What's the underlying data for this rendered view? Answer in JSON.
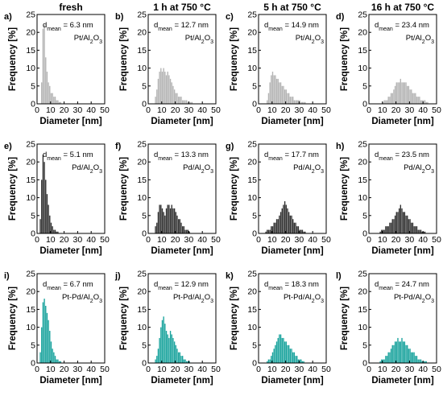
{
  "colors": {
    "Pt": "#b4b4b4",
    "Pd": "#303030",
    "Pt-Pd": "#19a39d",
    "axis": "#000000"
  },
  "chart_data": {
    "type": "bar",
    "layout": "grid",
    "column_titles": [
      "fresh",
      "1 h at 750 °C",
      "5 h at 750 °C",
      "16 h at 750 °C"
    ],
    "xlabel": "Diameter [nm]",
    "ylabel": "Frequency [%]",
    "xlim": [
      0,
      50
    ],
    "ylim": [
      0,
      25
    ],
    "xticks": [
      "0",
      "10",
      "20",
      "30",
      "40",
      "50"
    ],
    "yticks": [
      "0",
      "5",
      "10",
      "15",
      "20",
      "25"
    ],
    "bin_width": 1,
    "panels": [
      {
        "letter": "a)",
        "material": "Pt",
        "label": "Pt/Al2O3",
        "dmean": "6.3",
        "bins_start": 3,
        "values": [
          6,
          21,
          22,
          13,
          9,
          6,
          5,
          3,
          3,
          2,
          2,
          1,
          1,
          0.5,
          0.5
        ]
      },
      {
        "letter": "b)",
        "material": "Pt",
        "label": "Pt/Al2O3",
        "dmean": "12.7",
        "bins_start": 5,
        "values": [
          2,
          4,
          7,
          9,
          10,
          9,
          10,
          9,
          8,
          9,
          8,
          7,
          6,
          5,
          4,
          3,
          3,
          2,
          2,
          2,
          1,
          1,
          1,
          1,
          0.5,
          0.5,
          0.5,
          0.5
        ]
      },
      {
        "letter": "c)",
        "material": "Pt",
        "label": "Pt/Al2O3",
        "dmean": "14.9",
        "bins_start": 6,
        "values": [
          1,
          3,
          6,
          8,
          9,
          8,
          8,
          7,
          7,
          6,
          6,
          5,
          5,
          4,
          4,
          3,
          3,
          2,
          2,
          2,
          1,
          1,
          1,
          1,
          1,
          0.5,
          0.5,
          0.5,
          0.5
        ]
      },
      {
        "letter": "d)",
        "material": "Pt",
        "label": "Pt/Al2O3",
        "dmean": "23.4",
        "bins_start": 10,
        "values": [
          0.5,
          1,
          1,
          1,
          2,
          2,
          3,
          3,
          4,
          5,
          6,
          6,
          6,
          7,
          6,
          6,
          6,
          6,
          5,
          5,
          4,
          4,
          3,
          3,
          3,
          2,
          2,
          2,
          1,
          1,
          1,
          1,
          0.5,
          0.5
        ]
      },
      {
        "letter": "e)",
        "material": "Pd",
        "label": "Pd/Al2O3",
        "dmean": "5.1",
        "bins_start": 2,
        "values": [
          4,
          15,
          22,
          20,
          15,
          11,
          8,
          5,
          3,
          2,
          1,
          1,
          0.5,
          0.5
        ]
      },
      {
        "letter": "f)",
        "material": "Pd",
        "label": "Pd/Al2O3",
        "dmean": "13.3",
        "bins_start": 5,
        "values": [
          2,
          3,
          6,
          8,
          8,
          7,
          6,
          5,
          7,
          8,
          8,
          7,
          8,
          7,
          7,
          6,
          5,
          4,
          4,
          3,
          2,
          2,
          1,
          1,
          1,
          0.5
        ]
      },
      {
        "letter": "g)",
        "material": "Pd",
        "label": "Pd/Al2O3",
        "dmean": "17.7",
        "bins_start": 5,
        "values": [
          0.5,
          1,
          1,
          1,
          2,
          2,
          3,
          3,
          4,
          4,
          5,
          6,
          7,
          8,
          9,
          8,
          7,
          6,
          5,
          5,
          4,
          3,
          3,
          2,
          2,
          1,
          1,
          1,
          0.5,
          0.5
        ]
      },
      {
        "letter": "h)",
        "material": "Pd",
        "label": "Pd/Al2O3",
        "dmean": "23.5",
        "bins_start": 8,
        "values": [
          0.5,
          1,
          1,
          1,
          2,
          2,
          2,
          3,
          3,
          4,
          4,
          5,
          6,
          6,
          7,
          8,
          7,
          6,
          6,
          5,
          5,
          4,
          4,
          3,
          3,
          2,
          2,
          2,
          1,
          1,
          1,
          0.5,
          0.5,
          0.5
        ]
      },
      {
        "letter": "i)",
        "material": "Pt-Pd",
        "label": "Pt-Pd/Al2O3",
        "dmean": "6.7",
        "bins_start": 2,
        "values": [
          3,
          10,
          17,
          18,
          16,
          14,
          12,
          9,
          6,
          4,
          3,
          2,
          1,
          1,
          0.5,
          0.5
        ]
      },
      {
        "letter": "j)",
        "material": "Pt-Pd",
        "label": "Pt-Pd/Al2O3",
        "dmean": "12.9",
        "bins_start": 5,
        "values": [
          1,
          2,
          4,
          7,
          10,
          12,
          13,
          11,
          9,
          8,
          7,
          9,
          8,
          7,
          6,
          5,
          4,
          3,
          3,
          2,
          2,
          1,
          1,
          0.5,
          0.5,
          0.5
        ]
      },
      {
        "letter": "k)",
        "material": "Pt-Pd",
        "label": "Pt-Pd/Al2O3",
        "dmean": "18.3",
        "bins_start": 6,
        "values": [
          0.5,
          1,
          1,
          2,
          3,
          4,
          5,
          6,
          7,
          8,
          8,
          7,
          7,
          6,
          6,
          5,
          5,
          4,
          4,
          3,
          3,
          2,
          2,
          1,
          1,
          1,
          0.5,
          0.5
        ]
      },
      {
        "letter": "l)",
        "material": "Pt-Pd",
        "label": "Pt-Pd/Al2O3",
        "dmean": "24.7",
        "bins_start": 8,
        "values": [
          0.5,
          1,
          1,
          1,
          2,
          2,
          3,
          3,
          4,
          5,
          5,
          6,
          6,
          7,
          6,
          6,
          7,
          6,
          6,
          5,
          5,
          4,
          4,
          3,
          3,
          3,
          2,
          2,
          1,
          1,
          1,
          0.5,
          0.5,
          0.5,
          0.5
        ]
      }
    ]
  }
}
